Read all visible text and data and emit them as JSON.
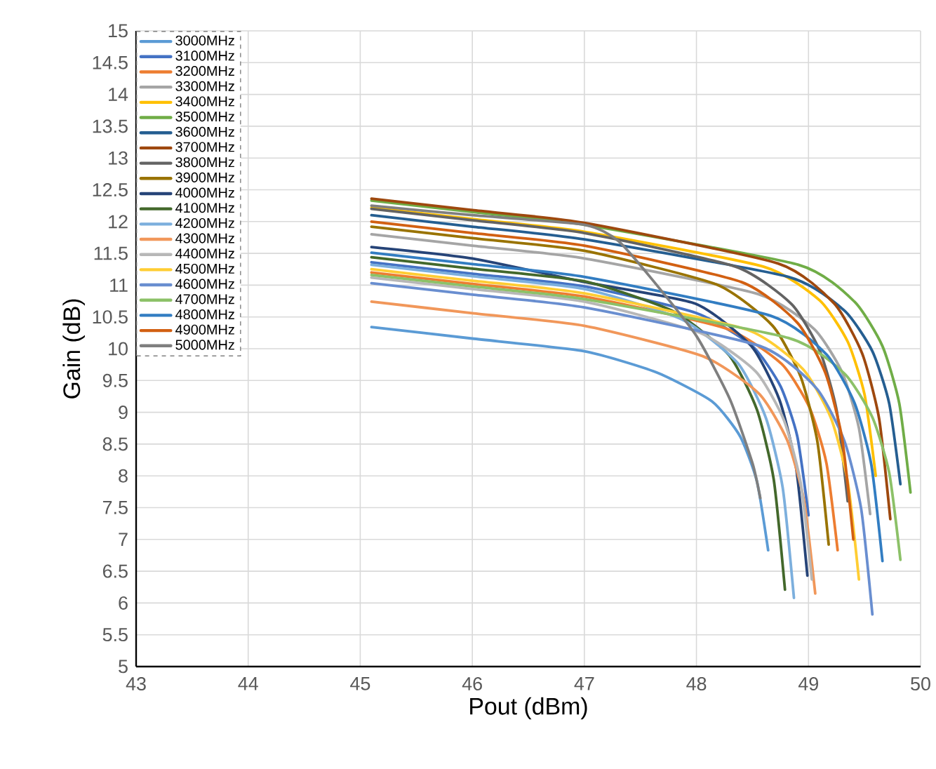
{
  "chart_data": {
    "type": "line",
    "xlabel": "Pout (dBm)",
    "ylabel": "Gain (dB)",
    "xlim": [
      43,
      50
    ],
    "ylim": [
      5,
      15
    ],
    "xticks": [
      43,
      44,
      45,
      46,
      47,
      48,
      49,
      50
    ],
    "yticks": [
      5,
      5.5,
      6,
      6.5,
      7,
      7.5,
      8,
      8.5,
      9,
      9.5,
      10,
      10.5,
      11,
      11.5,
      12,
      12.5,
      13,
      13.5,
      14,
      14.5,
      15
    ],
    "grid": true,
    "legend": "top left",
    "marker": "none",
    "line_style": "solid",
    "series": [
      {
        "name": "3000MHz",
        "color": "#5b9bd5",
        "x": [
          45.1,
          46,
          47,
          47.64,
          48.14,
          48.39,
          48.54,
          48.64
        ],
        "values": [
          10.34,
          10.16,
          9.96,
          9.63,
          9.17,
          8.62,
          7.91,
          6.83
        ]
      },
      {
        "name": "3100MHz",
        "color": "#4472c4",
        "x": [
          45.1,
          46,
          47,
          48.0,
          48.5,
          48.75,
          48.9,
          49.0
        ],
        "values": [
          11.36,
          11.18,
          10.98,
          10.56,
          10.04,
          9.41,
          8.62,
          7.38
        ]
      },
      {
        "name": "3200MHz",
        "color": "#ed7d31",
        "x": [
          45.1,
          46,
          47,
          48.26,
          48.76,
          49.01,
          49.16,
          49.26
        ],
        "values": [
          11.2,
          11.02,
          10.82,
          10.32,
          9.76,
          9.07,
          8.2,
          6.83
        ]
      },
      {
        "name": "3300MHz",
        "color": "#a5a5a5",
        "x": [
          45.1,
          46,
          47,
          48.55,
          49.05,
          49.3,
          49.45,
          49.55
        ],
        "values": [
          11.8,
          11.62,
          11.42,
          10.86,
          10.31,
          9.63,
          8.75,
          7.4
        ]
      },
      {
        "name": "3400MHz",
        "color": "#ffc000",
        "x": [
          45.1,
          46,
          47,
          48.6,
          49.1,
          49.35,
          49.5,
          49.6
        ],
        "values": [
          12.22,
          12.04,
          11.84,
          11.29,
          10.76,
          10.11,
          9.28,
          8.0
        ]
      },
      {
        "name": "3500MHz",
        "color": "#70ad47",
        "x": [
          45.1,
          46,
          47,
          48.91,
          49.41,
          49.66,
          49.81,
          49.91
        ],
        "values": [
          12.33,
          12.15,
          11.95,
          11.32,
          10.74,
          10.04,
          9.14,
          7.74
        ]
      },
      {
        "name": "3600MHz",
        "color": "#255e91",
        "x": [
          45.1,
          46,
          47,
          48.82,
          49.32,
          49.57,
          49.72,
          49.82
        ],
        "values": [
          12.1,
          11.92,
          11.72,
          11.13,
          10.6,
          9.96,
          9.14,
          7.87
        ]
      },
      {
        "name": "3700MHz",
        "color": "#9e480e",
        "x": [
          45.1,
          46,
          47,
          48.73,
          49.23,
          49.48,
          49.63,
          49.73
        ],
        "values": [
          12.36,
          12.18,
          11.98,
          11.34,
          10.71,
          9.92,
          8.9,
          7.32
        ]
      },
      {
        "name": "3800MHz",
        "color": "#636363",
        "x": [
          45.1,
          46,
          47,
          48.35,
          48.85,
          49.1,
          49.25,
          49.35
        ],
        "values": [
          12.2,
          12.02,
          11.82,
          11.29,
          10.7,
          9.97,
          9.04,
          7.6
        ]
      },
      {
        "name": "3900MHz",
        "color": "#997300",
        "x": [
          45.1,
          46,
          47,
          48.18,
          48.68,
          48.93,
          49.08,
          49.18
        ],
        "values": [
          11.92,
          11.74,
          11.54,
          11.01,
          10.36,
          9.56,
          8.53,
          6.92
        ]
      },
      {
        "name": "4000MHz",
        "color": "#264478",
        "x": [
          45.1,
          46,
          47,
          47.99,
          48.49,
          48.74,
          48.89,
          48.99
        ],
        "values": [
          11.6,
          11.42,
          11.05,
          10.71,
          10.04,
          9.2,
          8.12,
          6.43
        ]
      },
      {
        "name": "4100MHz",
        "color": "#43682b",
        "x": [
          45.1,
          46,
          47,
          47.79,
          48.29,
          48.54,
          48.69,
          48.79
        ],
        "values": [
          11.44,
          11.26,
          11.06,
          10.59,
          9.9,
          9.04,
          7.94,
          6.21
        ]
      },
      {
        "name": "4200MHz",
        "color": "#7cafdd",
        "x": [
          45.1,
          46,
          47,
          47.87,
          48.37,
          48.62,
          48.77,
          48.87
        ],
        "values": [
          11.32,
          11.14,
          10.94,
          10.46,
          9.77,
          8.91,
          7.81,
          6.08
        ]
      },
      {
        "name": "4300MHz",
        "color": "#f1975a",
        "x": [
          45.1,
          46,
          47,
          48.06,
          48.56,
          48.81,
          48.96,
          49.06
        ],
        "values": [
          10.74,
          10.56,
          10.36,
          9.88,
          9.29,
          8.56,
          7.61,
          6.15
        ]
      },
      {
        "name": "4400MHz",
        "color": "#b7b7b7",
        "x": [
          45.1,
          46,
          47,
          48.03,
          48.53,
          48.78,
          48.93,
          49.03
        ],
        "values": [
          11.12,
          10.94,
          10.74,
          10.25,
          9.64,
          8.88,
          7.89,
          6.37
        ]
      },
      {
        "name": "4500MHz",
        "color": "#ffcd33",
        "x": [
          45.1,
          46,
          47,
          48.45,
          48.95,
          49.2,
          49.35,
          49.45
        ],
        "values": [
          11.25,
          11.07,
          10.87,
          10.3,
          9.68,
          8.91,
          7.91,
          6.37
        ]
      },
      {
        "name": "4600MHz",
        "color": "#698ed0",
        "x": [
          45.1,
          46,
          47,
          48.57,
          49.07,
          49.32,
          49.47,
          49.57
        ],
        "values": [
          11.03,
          10.85,
          10.65,
          10.04,
          9.38,
          8.55,
          7.48,
          5.82
        ]
      },
      {
        "name": "4700MHz",
        "color": "#8cc168",
        "x": [
          45.1,
          46,
          47,
          48.82,
          49.32,
          49.57,
          49.72,
          49.82
        ],
        "values": [
          11.16,
          10.98,
          10.78,
          10.17,
          9.61,
          8.92,
          8.05,
          6.68
        ]
      },
      {
        "name": "4800MHz",
        "color": "#327dc2",
        "x": [
          45.1,
          46,
          47,
          48.66,
          49.16,
          49.41,
          49.56,
          49.66
        ],
        "values": [
          11.51,
          11.33,
          11.13,
          10.52,
          9.91,
          9.15,
          8.18,
          6.66
        ]
      },
      {
        "name": "4900MHz",
        "color": "#d26012",
        "x": [
          45.1,
          46,
          47,
          48.4,
          48.9,
          49.15,
          49.3,
          49.4
        ],
        "values": [
          12.0,
          11.82,
          11.62,
          11.05,
          10.41,
          9.62,
          8.59,
          7.0
        ]
      },
      {
        "name": "5000MHz",
        "color": "#7f7f7f",
        "x": [
          45.1,
          46,
          47,
          47.3,
          47.6,
          48.0,
          48.3,
          48.5,
          48.57
        ],
        "values": [
          12.25,
          12.1,
          11.95,
          11.7,
          11.1,
          10.2,
          9.2,
          8.2,
          7.65
        ]
      }
    ]
  }
}
